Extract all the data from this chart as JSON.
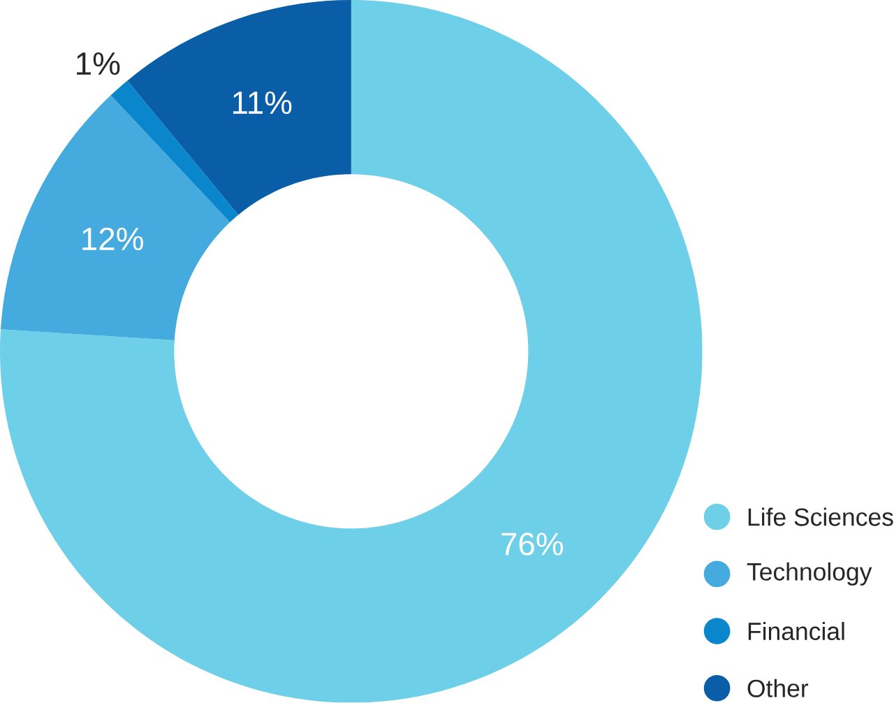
{
  "chart_data": {
    "type": "donut",
    "categories": [
      "Life Sciences",
      "Technology",
      "Financial",
      "Other"
    ],
    "values": [
      76,
      12,
      1,
      11
    ],
    "colors": [
      "#6dcfe8",
      "#45aade",
      "#0a86cc",
      "#0a5ea8"
    ],
    "value_labels": [
      "76%",
      "12%",
      "1%",
      "11%"
    ],
    "legend": "bottom right"
  }
}
